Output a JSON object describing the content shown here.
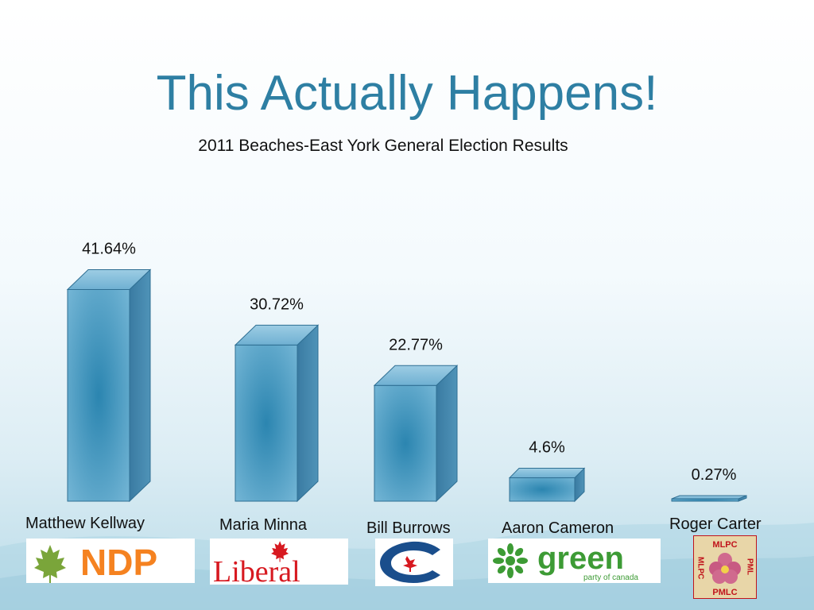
{
  "slide": {
    "title": "This Actually Happens!",
    "subtitle": "2011 Beaches-East York General Election Results"
  },
  "colors": {
    "title": "#2e7fa3",
    "bar_front": "#5ba7ca",
    "bar_front_center": "#2b85b0",
    "bar_side": "#3c7fa6",
    "bar_top": "#8cc3de",
    "ndp_orange": "#f58220",
    "liberal_red": "#d71920",
    "conservative_blue": "#1a4e8c",
    "green_party": "#3d9b35",
    "mlpc_red": "#c0141c"
  },
  "chart_data": {
    "type": "bar",
    "title": "2011 Beaches-East York General Election Results",
    "categories": [
      "Matthew Kellway",
      "Maria Minna",
      "Bill Burrows",
      "Aaron Cameron",
      "Roger Carter"
    ],
    "values": [
      41.64,
      30.72,
      22.77,
      4.6,
      0.27
    ],
    "labels": [
      "41.64%",
      "30.72%",
      "22.77%",
      "4.6%",
      "0.27%"
    ],
    "unit": "%"
  },
  "logos": {
    "ndp": {
      "text": "NDP",
      "icon": "maple-leaf-icon"
    },
    "liberal": {
      "text": "Liberal",
      "icon": "maple-leaf-icon"
    },
    "conservative": {
      "icon": "conservative-c-icon"
    },
    "green": {
      "text": "green",
      "subtext": "party of canada",
      "icon": "green-flower-icon"
    },
    "mlpc": {
      "top": "MLPC",
      "left": "MLPC",
      "right": "PML",
      "bottom": "PMLC",
      "icon": "flower-icon"
    }
  }
}
